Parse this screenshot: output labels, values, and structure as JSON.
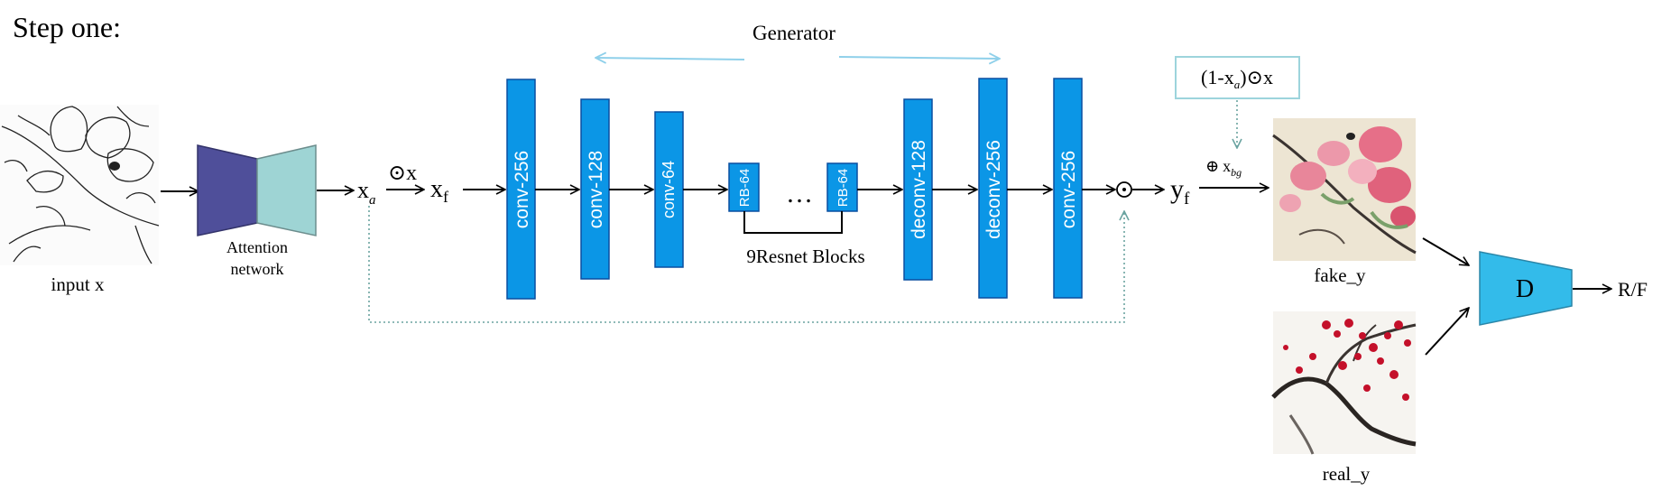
{
  "step_title": "Step one:",
  "generator_label": "Generator",
  "attention": {
    "label_line1": "Attention",
    "label_line2": "network"
  },
  "input_label": "input x",
  "x_a": {
    "main": "x",
    "sub": "a"
  },
  "odot_x": "⊙x",
  "x_f": {
    "main": "x",
    "sub": "f"
  },
  "layers": {
    "conv_256_a": "conv-256",
    "conv_128": "conv-128",
    "conv_64": "conv-64",
    "rb_64_a": "RB-64",
    "rb_64_b": "RB-64",
    "deconv_128": "deconv-128",
    "deconv_256": "deconv-256",
    "conv_256_b": "conv-256"
  },
  "ellipsis": "…",
  "resnet_label": "9Resnet Blocks",
  "odot_symbol": "⊙",
  "y_f": {
    "main": "y",
    "sub": "f"
  },
  "background_box": {
    "prefix": "(1-",
    "var": "x",
    "sub": "a",
    "suffix": ")⊙x"
  },
  "oplus_x_bg": {
    "prefix": "⊕",
    "var": "x",
    "sub": "bg"
  },
  "fake_label": "fake_y",
  "real_label": "real_y",
  "discriminator_label": "D",
  "output_label": "R/F",
  "colors": {
    "layer_fill": "#0b96e6",
    "layer_stroke": "#0a4fa0",
    "attention_left": "#4f4f9a",
    "attention_right": "#9ed4d4",
    "discriminator": "#33bbea",
    "generator_arrow": "#8fd0ea",
    "dotted_line": "#6aa3a0",
    "box_border": "#9dd4dc"
  },
  "icons": [
    "sketch-image",
    "painting-image",
    "odot-symbol",
    "oplus-symbol"
  ]
}
